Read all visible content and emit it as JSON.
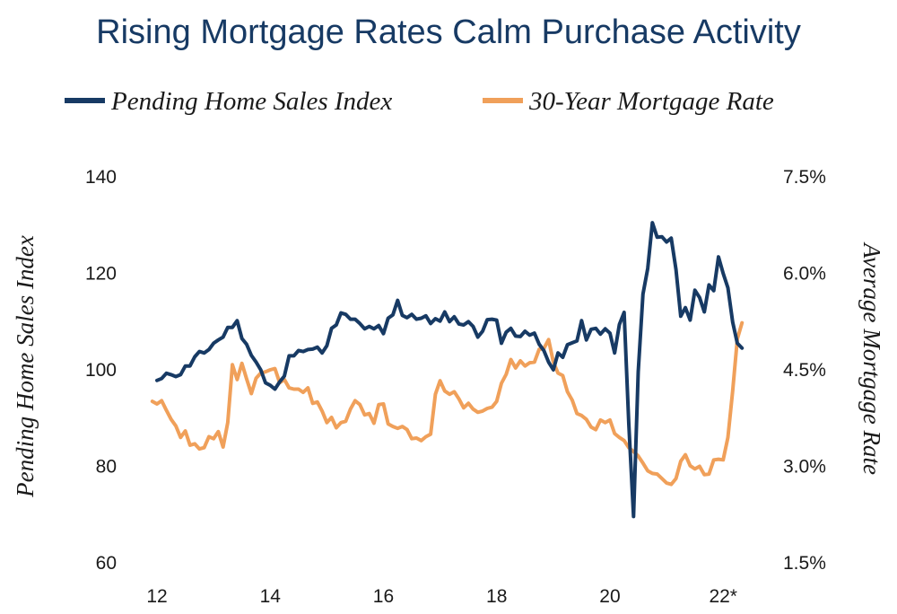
{
  "chart_data": {
    "type": "line",
    "title": "Rising Mortgage Rates Calm Purchase Activity",
    "x_ticks": [
      "12",
      "14",
      "16",
      "18",
      "20",
      "22*"
    ],
    "y_left_label": "Pending Home Sales Index",
    "y_right_label": "Average Mortgage Rate",
    "y_left_ticks": [
      "140",
      "120",
      "100",
      "80",
      "60"
    ],
    "y_right_ticks": [
      "7.5%",
      "6.0%",
      "4.5%",
      "3.0%",
      "1.5%"
    ],
    "y_left_range": [
      60,
      140
    ],
    "y_right_range": [
      1.5,
      7.5
    ],
    "x_range": [
      2012.0,
      2022.25
    ],
    "grid": false,
    "legend_position": "top",
    "series": [
      {
        "name": "Pending Home Sales Index",
        "axis": "left",
        "color": "#173a64",
        "points": [
          [
            2012.0,
            97.8
          ],
          [
            2012.083,
            98.2
          ],
          [
            2012.167,
            99.3
          ],
          [
            2012.25,
            99.0
          ],
          [
            2012.333,
            98.6
          ],
          [
            2012.417,
            99.0
          ],
          [
            2012.5,
            100.8
          ],
          [
            2012.583,
            100.8
          ],
          [
            2012.667,
            102.7
          ],
          [
            2012.75,
            103.8
          ],
          [
            2012.833,
            103.5
          ],
          [
            2012.917,
            104.2
          ],
          [
            2013.0,
            105.5
          ],
          [
            2013.083,
            106.2
          ],
          [
            2013.167,
            106.8
          ],
          [
            2013.25,
            108.8
          ],
          [
            2013.333,
            108.8
          ],
          [
            2013.417,
            110.2
          ],
          [
            2013.5,
            106.5
          ],
          [
            2013.583,
            105.3
          ],
          [
            2013.667,
            103.0
          ],
          [
            2013.75,
            101.6
          ],
          [
            2013.833,
            100.0
          ],
          [
            2013.917,
            97.3
          ],
          [
            2014.0,
            96.8
          ],
          [
            2014.083,
            96.0
          ],
          [
            2014.167,
            97.5
          ],
          [
            2014.25,
            98.7
          ],
          [
            2014.333,
            102.9
          ],
          [
            2014.417,
            102.9
          ],
          [
            2014.5,
            104.0
          ],
          [
            2014.583,
            103.8
          ],
          [
            2014.667,
            104.2
          ],
          [
            2014.75,
            104.3
          ],
          [
            2014.833,
            104.7
          ],
          [
            2014.917,
            103.5
          ],
          [
            2015.0,
            105.0
          ],
          [
            2015.083,
            108.6
          ],
          [
            2015.167,
            109.3
          ],
          [
            2015.25,
            111.8
          ],
          [
            2015.333,
            111.5
          ],
          [
            2015.417,
            110.5
          ],
          [
            2015.5,
            110.5
          ],
          [
            2015.583,
            109.6
          ],
          [
            2015.667,
            108.5
          ],
          [
            2015.75,
            109.0
          ],
          [
            2015.833,
            108.5
          ],
          [
            2015.917,
            109.2
          ],
          [
            2016.0,
            107.5
          ],
          [
            2016.083,
            110.7
          ],
          [
            2016.167,
            111.4
          ],
          [
            2016.25,
            114.4
          ],
          [
            2016.333,
            111.3
          ],
          [
            2016.417,
            110.8
          ],
          [
            2016.5,
            111.5
          ],
          [
            2016.583,
            110.5
          ],
          [
            2016.667,
            110.7
          ],
          [
            2016.75,
            111.2
          ],
          [
            2016.833,
            109.6
          ],
          [
            2016.917,
            110.6
          ],
          [
            2017.0,
            110.1
          ],
          [
            2017.083,
            112.0
          ],
          [
            2017.167,
            110.0
          ],
          [
            2017.25,
            111.0
          ],
          [
            2017.333,
            109.5
          ],
          [
            2017.417,
            109.3
          ],
          [
            2017.5,
            110.0
          ],
          [
            2017.583,
            109.0
          ],
          [
            2017.667,
            106.8
          ],
          [
            2017.75,
            108.0
          ],
          [
            2017.833,
            110.4
          ],
          [
            2017.917,
            110.5
          ],
          [
            2018.0,
            110.3
          ],
          [
            2018.083,
            105.5
          ],
          [
            2018.167,
            107.8
          ],
          [
            2018.25,
            108.6
          ],
          [
            2018.333,
            107.0
          ],
          [
            2018.417,
            106.9
          ],
          [
            2018.5,
            108.0
          ],
          [
            2018.583,
            107.2
          ],
          [
            2018.667,
            107.6
          ],
          [
            2018.75,
            105.3
          ],
          [
            2018.833,
            104.0
          ],
          [
            2018.917,
            101.6
          ],
          [
            2019.0,
            100.0
          ],
          [
            2019.083,
            103.5
          ],
          [
            2019.167,
            102.6
          ],
          [
            2019.25,
            105.2
          ],
          [
            2019.333,
            105.6
          ],
          [
            2019.417,
            106.0
          ],
          [
            2019.5,
            110.2
          ],
          [
            2019.583,
            106.2
          ],
          [
            2019.667,
            108.4
          ],
          [
            2019.75,
            108.6
          ],
          [
            2019.833,
            107.4
          ],
          [
            2019.917,
            108.5
          ],
          [
            2020.0,
            107.6
          ],
          [
            2020.083,
            103.5
          ],
          [
            2020.167,
            109.4
          ],
          [
            2020.25,
            111.9
          ],
          [
            2020.333,
            88.8
          ],
          [
            2020.417,
            69.6
          ],
          [
            2020.5,
            99.6
          ],
          [
            2020.583,
            115.7
          ],
          [
            2020.667,
            121.0
          ],
          [
            2020.75,
            130.5
          ],
          [
            2020.833,
            127.5
          ],
          [
            2020.917,
            127.6
          ],
          [
            2021.0,
            126.5
          ],
          [
            2021.083,
            127.3
          ],
          [
            2021.167,
            120.8
          ],
          [
            2021.25,
            111.1
          ],
          [
            2021.333,
            112.9
          ],
          [
            2021.417,
            110.3
          ],
          [
            2021.5,
            116.5
          ],
          [
            2021.583,
            115.0
          ],
          [
            2021.667,
            112.0
          ],
          [
            2021.75,
            117.6
          ],
          [
            2021.833,
            116.4
          ],
          [
            2021.917,
            123.4
          ],
          [
            2022.0,
            120.0
          ],
          [
            2022.083,
            117.0
          ],
          [
            2022.167,
            109.9
          ],
          [
            2022.25,
            105.5
          ],
          [
            2022.333,
            104.5
          ]
        ]
      },
      {
        "name": "30-Year Mortgage Rate",
        "axis": "right",
        "color": "#f0a05a",
        "points": [
          [
            2011.917,
            4.01
          ],
          [
            2012.0,
            3.97
          ],
          [
            2012.083,
            4.02
          ],
          [
            2012.167,
            3.87
          ],
          [
            2012.25,
            3.73
          ],
          [
            2012.333,
            3.63
          ],
          [
            2012.417,
            3.45
          ],
          [
            2012.5,
            3.55
          ],
          [
            2012.583,
            3.33
          ],
          [
            2012.667,
            3.35
          ],
          [
            2012.75,
            3.27
          ],
          [
            2012.833,
            3.29
          ],
          [
            2012.917,
            3.46
          ],
          [
            2013.0,
            3.43
          ],
          [
            2013.083,
            3.54
          ],
          [
            2013.167,
            3.3
          ],
          [
            2013.25,
            3.68
          ],
          [
            2013.333,
            4.58
          ],
          [
            2013.417,
            4.35
          ],
          [
            2013.5,
            4.6
          ],
          [
            2013.583,
            4.36
          ],
          [
            2013.667,
            4.13
          ],
          [
            2013.75,
            4.37
          ],
          [
            2013.833,
            4.45
          ],
          [
            2013.917,
            4.47
          ],
          [
            2014.0,
            4.5
          ],
          [
            2014.083,
            4.52
          ],
          [
            2014.167,
            4.3
          ],
          [
            2014.25,
            4.35
          ],
          [
            2014.333,
            4.22
          ],
          [
            2014.417,
            4.2
          ],
          [
            2014.5,
            4.2
          ],
          [
            2014.583,
            4.15
          ],
          [
            2014.667,
            4.22
          ],
          [
            2014.75,
            3.98
          ],
          [
            2014.833,
            4.0
          ],
          [
            2014.917,
            3.86
          ],
          [
            2015.0,
            3.68
          ],
          [
            2015.083,
            3.76
          ],
          [
            2015.167,
            3.6
          ],
          [
            2015.25,
            3.68
          ],
          [
            2015.333,
            3.7
          ],
          [
            2015.417,
            3.89
          ],
          [
            2015.5,
            4.02
          ],
          [
            2015.583,
            3.96
          ],
          [
            2015.667,
            3.8
          ],
          [
            2015.75,
            3.82
          ],
          [
            2015.833,
            3.67
          ],
          [
            2015.917,
            3.96
          ],
          [
            2016.0,
            3.97
          ],
          [
            2016.083,
            3.66
          ],
          [
            2016.167,
            3.62
          ],
          [
            2016.25,
            3.59
          ],
          [
            2016.333,
            3.62
          ],
          [
            2016.417,
            3.57
          ],
          [
            2016.5,
            3.43
          ],
          [
            2016.583,
            3.44
          ],
          [
            2016.667,
            3.4
          ],
          [
            2016.75,
            3.46
          ],
          [
            2016.833,
            3.5
          ],
          [
            2016.917,
            4.12
          ],
          [
            2017.0,
            4.33
          ],
          [
            2017.083,
            4.17
          ],
          [
            2017.167,
            4.12
          ],
          [
            2017.25,
            4.16
          ],
          [
            2017.333,
            4.05
          ],
          [
            2017.417,
            3.91
          ],
          [
            2017.5,
            3.98
          ],
          [
            2017.583,
            3.89
          ],
          [
            2017.667,
            3.84
          ],
          [
            2017.75,
            3.86
          ],
          [
            2017.833,
            3.9
          ],
          [
            2017.917,
            3.92
          ],
          [
            2018.0,
            4.01
          ],
          [
            2018.083,
            4.29
          ],
          [
            2018.167,
            4.43
          ],
          [
            2018.25,
            4.66
          ],
          [
            2018.333,
            4.53
          ],
          [
            2018.417,
            4.64
          ],
          [
            2018.5,
            4.56
          ],
          [
            2018.583,
            4.61
          ],
          [
            2018.667,
            4.62
          ],
          [
            2018.75,
            4.82
          ],
          [
            2018.833,
            4.83
          ],
          [
            2018.917,
            4.97
          ],
          [
            2019.0,
            4.62
          ],
          [
            2019.083,
            4.45
          ],
          [
            2019.167,
            4.41
          ],
          [
            2019.25,
            4.16
          ],
          [
            2019.333,
            4.03
          ],
          [
            2019.417,
            3.82
          ],
          [
            2019.5,
            3.79
          ],
          [
            2019.583,
            3.73
          ],
          [
            2019.667,
            3.61
          ],
          [
            2019.75,
            3.57
          ],
          [
            2019.833,
            3.72
          ],
          [
            2019.917,
            3.68
          ],
          [
            2020.0,
            3.72
          ],
          [
            2020.083,
            3.51
          ],
          [
            2020.167,
            3.45
          ],
          [
            2020.25,
            3.4
          ],
          [
            2020.333,
            3.29
          ],
          [
            2020.417,
            3.23
          ],
          [
            2020.5,
            3.16
          ],
          [
            2020.583,
            3.05
          ],
          [
            2020.667,
            2.93
          ],
          [
            2020.75,
            2.89
          ],
          [
            2020.833,
            2.88
          ],
          [
            2020.917,
            2.81
          ],
          [
            2021.0,
            2.74
          ],
          [
            2021.083,
            2.72
          ],
          [
            2021.167,
            2.81
          ],
          [
            2021.25,
            3.08
          ],
          [
            2021.333,
            3.18
          ],
          [
            2021.417,
            3.01
          ],
          [
            2021.5,
            2.96
          ],
          [
            2021.583,
            3.0
          ],
          [
            2021.667,
            2.87
          ],
          [
            2021.75,
            2.88
          ],
          [
            2021.833,
            3.1
          ],
          [
            2021.917,
            3.11
          ],
          [
            2022.0,
            3.1
          ],
          [
            2022.083,
            3.45
          ],
          [
            2022.167,
            4.17
          ],
          [
            2022.25,
            4.98
          ],
          [
            2022.333,
            5.23
          ]
        ]
      }
    ]
  }
}
